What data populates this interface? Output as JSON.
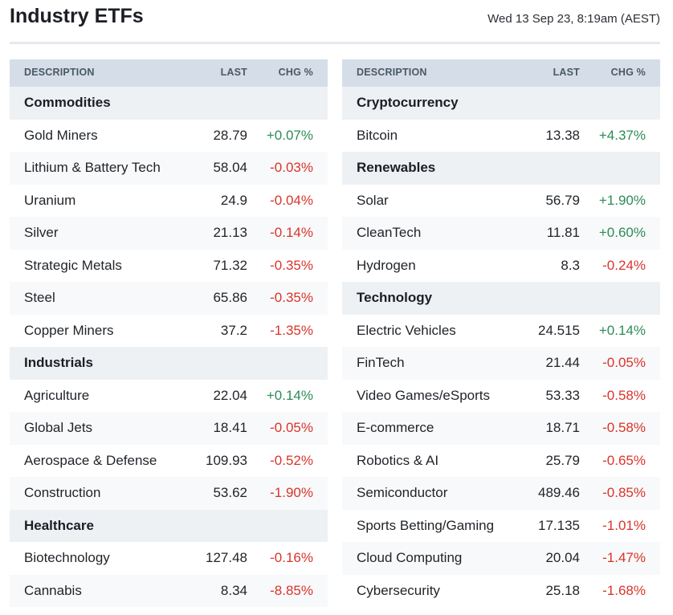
{
  "page": {
    "title": "Industry ETFs",
    "timestamp": "Wed 13 Sep 23, 8:19am (AEST)"
  },
  "columns": {
    "description": "DESCRIPTION",
    "last": "LAST",
    "chg": "CHG %"
  },
  "colors": {
    "positive": "#2e8b57",
    "negative": "#d9342b",
    "header_bg": "#d5dee8",
    "section_bg": "#eef1f4"
  },
  "left_table": {
    "rows": [
      {
        "type": "section",
        "name": "Commodities"
      },
      {
        "type": "data",
        "name": "Gold Miners",
        "last": "28.79",
        "chg": "+0.07%"
      },
      {
        "type": "data",
        "name": "Lithium & Battery Tech",
        "last": "58.04",
        "chg": "-0.03%"
      },
      {
        "type": "data",
        "name": "Uranium",
        "last": "24.9",
        "chg": "-0.04%"
      },
      {
        "type": "data",
        "name": "Silver",
        "last": "21.13",
        "chg": "-0.14%"
      },
      {
        "type": "data",
        "name": "Strategic Metals",
        "last": "71.32",
        "chg": "-0.35%"
      },
      {
        "type": "data",
        "name": "Steel",
        "last": "65.86",
        "chg": "-0.35%"
      },
      {
        "type": "data",
        "name": "Copper Miners",
        "last": "37.2",
        "chg": "-1.35%"
      },
      {
        "type": "section",
        "name": "Industrials"
      },
      {
        "type": "data",
        "name": "Agriculture",
        "last": "22.04",
        "chg": "+0.14%"
      },
      {
        "type": "data",
        "name": "Global Jets",
        "last": "18.41",
        "chg": "-0.05%"
      },
      {
        "type": "data",
        "name": "Aerospace & Defense",
        "last": "109.93",
        "chg": "-0.52%"
      },
      {
        "type": "data",
        "name": "Construction",
        "last": "53.62",
        "chg": "-1.90%"
      },
      {
        "type": "section",
        "name": "Healthcare"
      },
      {
        "type": "data",
        "name": "Biotechnology",
        "last": "127.48",
        "chg": "-0.16%"
      },
      {
        "type": "data",
        "name": "Cannabis",
        "last": "8.34",
        "chg": "-8.85%"
      }
    ]
  },
  "right_table": {
    "rows": [
      {
        "type": "section",
        "name": "Cryptocurrency"
      },
      {
        "type": "data",
        "name": "Bitcoin",
        "last": "13.38",
        "chg": "+4.37%"
      },
      {
        "type": "section",
        "name": "Renewables"
      },
      {
        "type": "data",
        "name": "Solar",
        "last": "56.79",
        "chg": "+1.90%"
      },
      {
        "type": "data",
        "name": "CleanTech",
        "last": "11.81",
        "chg": "+0.60%"
      },
      {
        "type": "data",
        "name": "Hydrogen",
        "last": "8.3",
        "chg": "-0.24%"
      },
      {
        "type": "section",
        "name": "Technology"
      },
      {
        "type": "data",
        "name": "Electric Vehicles",
        "last": "24.515",
        "chg": "+0.14%"
      },
      {
        "type": "data",
        "name": "FinTech",
        "last": "21.44",
        "chg": "-0.05%"
      },
      {
        "type": "data",
        "name": "Video Games/eSports",
        "last": "53.33",
        "chg": "-0.58%"
      },
      {
        "type": "data",
        "name": "E-commerce",
        "last": "18.71",
        "chg": "-0.58%"
      },
      {
        "type": "data",
        "name": "Robotics & AI",
        "last": "25.79",
        "chg": "-0.65%"
      },
      {
        "type": "data",
        "name": "Semiconductor",
        "last": "489.46",
        "chg": "-0.85%"
      },
      {
        "type": "data",
        "name": "Sports Betting/Gaming",
        "last": "17.135",
        "chg": "-1.01%"
      },
      {
        "type": "data",
        "name": "Cloud Computing",
        "last": "20.04",
        "chg": "-1.47%"
      },
      {
        "type": "data",
        "name": "Cybersecurity",
        "last": "25.18",
        "chg": "-1.68%"
      }
    ]
  }
}
